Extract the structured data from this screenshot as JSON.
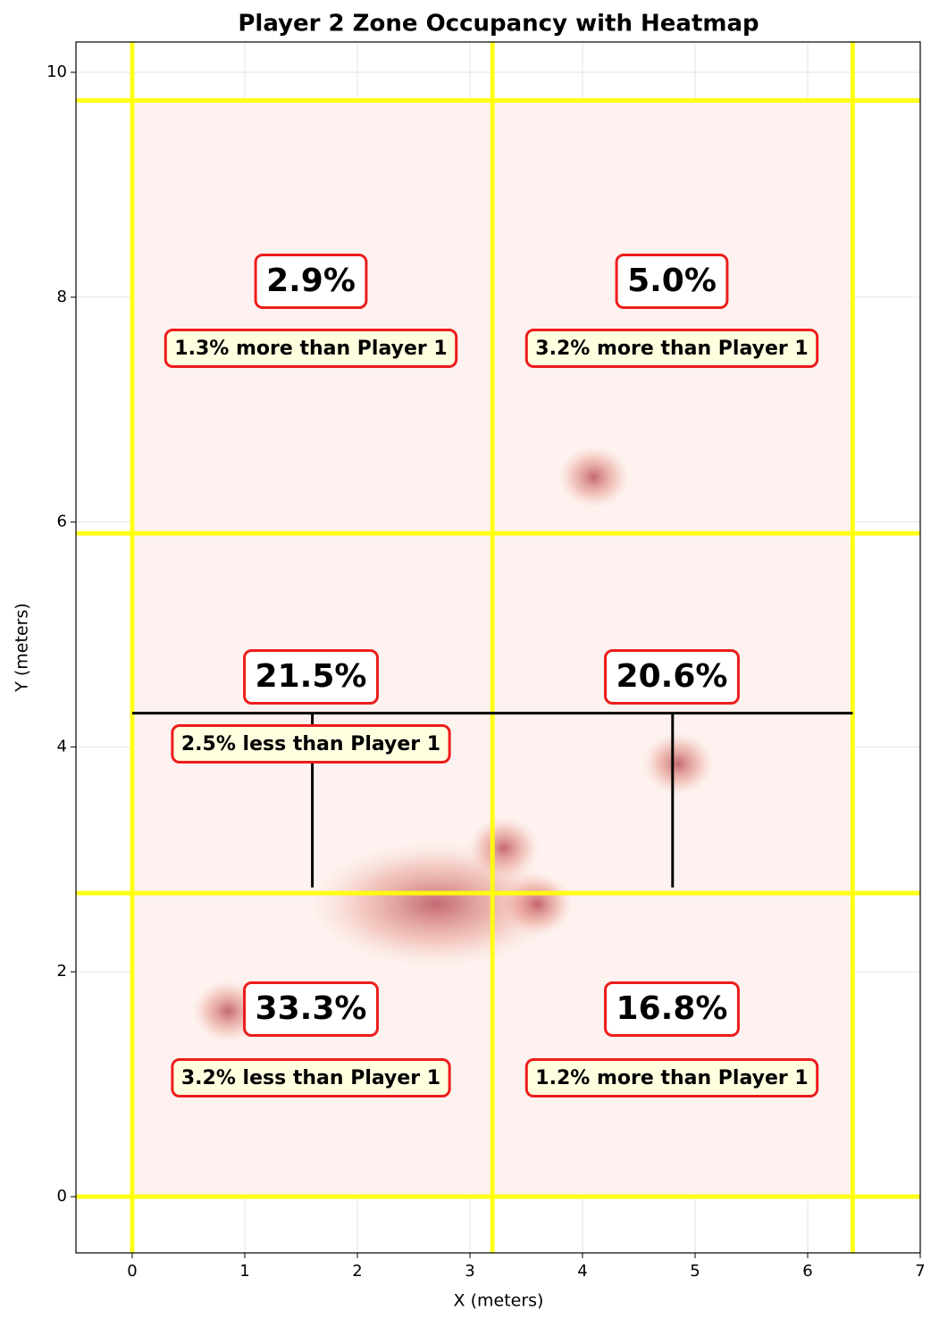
{
  "chart_data": {
    "type": "zones",
    "title": "Player 2 Zone Occupancy with Heatmap",
    "x_label": "X (meters)",
    "y_label": "Y (meters)",
    "xlim": [
      -0.5,
      7
    ],
    "ylim": [
      -0.5,
      10.27
    ],
    "xticks": [
      0,
      1,
      2,
      3,
      4,
      5,
      6,
      7
    ],
    "yticks": [
      0,
      2,
      4,
      6,
      8,
      10
    ],
    "grid": true,
    "zone_x": [
      0,
      3.2,
      6.4
    ],
    "zone_y": [
      0,
      2.7,
      5.9,
      9.75
    ],
    "zone_color": "#ffff00",
    "dividers": [
      {
        "x": [
          0,
          6.4
        ],
        "y": [
          4.3,
          4.3
        ]
      },
      {
        "x": [
          1.6,
          1.6
        ],
        "y": [
          4.3,
          2.75
        ]
      },
      {
        "x": [
          4.8,
          4.8
        ],
        "y": [
          4.3,
          2.75
        ]
      }
    ],
    "zones": [
      {
        "values": 2.9,
        "value_labels": "2.9%",
        "note": "1.3% more than Player 1"
      },
      {
        "values": 5.0,
        "value_labels": "5.0%",
        "note": "3.2% more than Player 1"
      },
      {
        "values": 21.5,
        "value_labels": "21.5%",
        "note": "2.5% less than Player 1"
      },
      {
        "values": 20.6,
        "value_labels": "20.6%"
      },
      {
        "values": 33.3,
        "value_labels": "33.3%",
        "note": "3.2% less than Player 1"
      },
      {
        "values": 16.8,
        "value_labels": "16.8%",
        "note": "1.2% more than Player 1"
      }
    ],
    "hotspots": [
      {
        "x": 2.7,
        "y": 2.6
      },
      {
        "x": 3.3,
        "y": 3.1
      },
      {
        "x": 3.6,
        "y": 2.6
      },
      {
        "x": 4.85,
        "y": 3.85
      },
      {
        "x": 0.85,
        "y": 1.65
      },
      {
        "x": 4.1,
        "y": 6.4
      }
    ],
    "color": "#c0392b"
  }
}
